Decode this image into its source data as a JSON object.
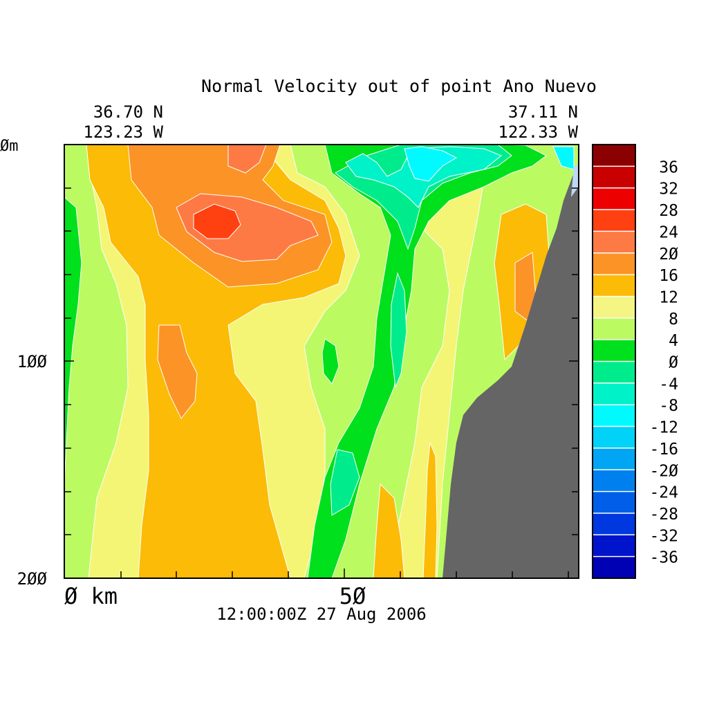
{
  "chart_data": {
    "type": "heatmap",
    "title": "Normal Velocity out of point Ano Nuevo",
    "corner_left": {
      "lat": "36.70 N",
      "lon": "123.23 W"
    },
    "corner_right": {
      "lat": "37.11 N",
      "lon": "122.33 W"
    },
    "timestamp": "12:00:00Z  27 Aug 2006",
    "x_axis": {
      "units_label": "Ø km",
      "ticks": [
        {
          "value": 50,
          "label": "5Ø"
        }
      ],
      "range": [
        0,
        92
      ]
    },
    "y_axis": {
      "units_label": "Øm",
      "ticks": [
        {
          "value": 100,
          "label": "1ØØ"
        },
        {
          "value": 200,
          "label": "2ØØ"
        }
      ],
      "range": [
        0,
        200
      ],
      "inverted": true
    },
    "colorbar": {
      "levels": [
        {
          "label": "36",
          "value": 36,
          "color": "#8b0000"
        },
        {
          "label": "32",
          "value": 32,
          "color": "#c80000"
        },
        {
          "label": "28",
          "value": 28,
          "color": "#ec0000"
        },
        {
          "label": "24",
          "value": 24,
          "color": "#ff4010"
        },
        {
          "label": "2Ø",
          "value": 20,
          "color": "#fd7a45"
        },
        {
          "label": "16",
          "value": 16,
          "color": "#fc9326"
        },
        {
          "label": "12",
          "value": 12,
          "color": "#fbbb06"
        },
        {
          "label": "8",
          "value": 8,
          "color": "#f4f582"
        },
        {
          "label": "4",
          "value": 4,
          "color": "#bcfa62"
        },
        {
          "label": "Ø",
          "value": 0,
          "color": "#00e01c"
        },
        {
          "label": "-4",
          "value": -4,
          "color": "#00ec8c"
        },
        {
          "label": "-8",
          "value": -8,
          "color": "#00f2c8"
        },
        {
          "label": "-12",
          "value": -12,
          "color": "#00faff"
        },
        {
          "label": "-16",
          "value": -16,
          "color": "#00d2f8"
        },
        {
          "label": "-2Ø",
          "value": -20,
          "color": "#00a6f4"
        },
        {
          "label": "-24",
          "value": -24,
          "color": "#0080ee"
        },
        {
          "label": "-28",
          "value": -28,
          "color": "#005ee8"
        },
        {
          "label": "-32",
          "value": -32,
          "color": "#0038e0"
        },
        {
          "label": "-36",
          "value": -36,
          "color": "#0014cc"
        },
        {
          "label": "",
          "value": -40,
          "color": "#0000b4"
        }
      ]
    },
    "land_color": "#656565"
  }
}
